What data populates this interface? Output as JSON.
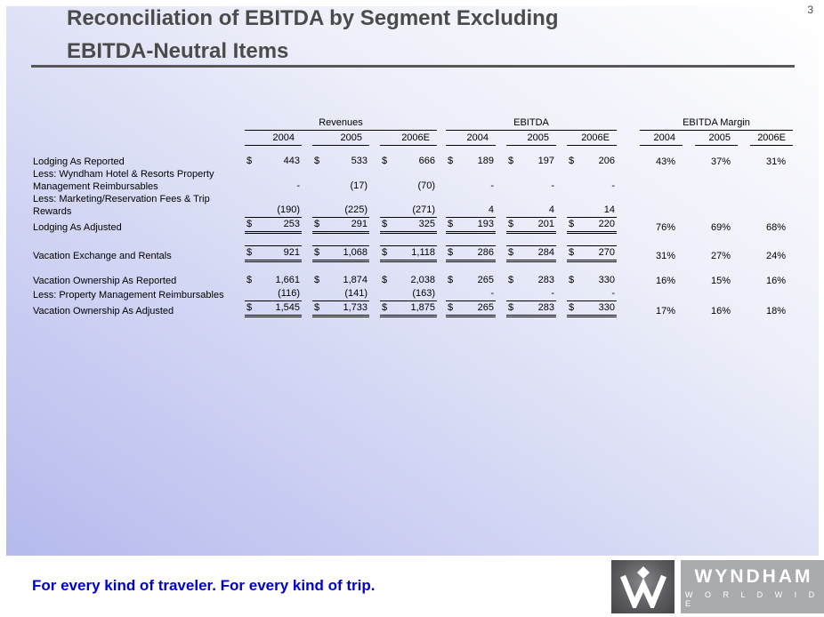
{
  "page": {
    "number": "3"
  },
  "title": {
    "line1": "Reconciliation of EBITDA by Segment Excluding",
    "line2": "EBITDA-Neutral Items"
  },
  "colors": {
    "panel_lavender": "#b5baee",
    "title_gray": "#4b4b4b",
    "tagline_blue": "#0000cc",
    "logo_dark_gray": "#454549",
    "logo_light_gray": "#a8aaad"
  },
  "table": {
    "groups": [
      {
        "label": "Revenues",
        "years": [
          "2004",
          "2005",
          "2006E"
        ]
      },
      {
        "label": "EBITDA",
        "years": [
          "2004",
          "2005",
          "2006E"
        ]
      },
      {
        "label": "EBITDA Margin",
        "years": [
          "2004",
          "2005",
          "2006E"
        ]
      }
    ],
    "rows": [
      {
        "label": "Lodging As Reported",
        "revenues": [
          {
            "d": "$",
            "v": "443"
          },
          {
            "d": "$",
            "v": "533"
          },
          {
            "d": "$",
            "v": "666"
          }
        ],
        "ebitda": [
          {
            "d": "$",
            "v": "189"
          },
          {
            "d": "$",
            "v": "197"
          },
          {
            "d": "$",
            "v": "206"
          }
        ],
        "margin": [
          "43%",
          "37%",
          "31%"
        ],
        "border": "none"
      },
      {
        "label": "Less:  Wyndham Hotel & Resorts Property",
        "label2": "Management Reimbursables",
        "revenues": [
          {
            "d": "",
            "v": "-"
          },
          {
            "d": "",
            "v": "(17)"
          },
          {
            "d": "",
            "v": "(70)"
          }
        ],
        "ebitda": [
          {
            "d": "",
            "v": "-"
          },
          {
            "d": "",
            "v": "-"
          },
          {
            "d": "",
            "v": "-"
          }
        ],
        "margin": [
          "",
          "",
          ""
        ],
        "border": "none"
      },
      {
        "label": "Less:  Marketing/Reservation Fees & Trip Rewards",
        "revenues": [
          {
            "d": "",
            "v": "(190)"
          },
          {
            "d": "",
            "v": "(225)"
          },
          {
            "d": "",
            "v": "(271)"
          }
        ],
        "ebitda": [
          {
            "d": "",
            "v": "4"
          },
          {
            "d": "",
            "v": "4"
          },
          {
            "d": "",
            "v": "14"
          }
        ],
        "margin": [
          "",
          "",
          ""
        ],
        "border": "single"
      },
      {
        "label": "Lodging As Adjusted",
        "revenues": [
          {
            "d": "$",
            "v": "253"
          },
          {
            "d": "$",
            "v": "291"
          },
          {
            "d": "$",
            "v": "325"
          }
        ],
        "ebitda": [
          {
            "d": "$",
            "v": "193"
          },
          {
            "d": "$",
            "v": "201"
          },
          {
            "d": "$",
            "v": "220"
          }
        ],
        "margin": [
          "76%",
          "69%",
          "68%"
        ],
        "border": "double"
      },
      {
        "spacer": true
      },
      {
        "label": "Vacation Exchange and Rentals",
        "revenues": [
          {
            "d": "$",
            "v": "921"
          },
          {
            "d": "$",
            "v": "1,068"
          },
          {
            "d": "$",
            "v": "1,118"
          }
        ],
        "ebitda": [
          {
            "d": "$",
            "v": "286"
          },
          {
            "d": "$",
            "v": "284"
          },
          {
            "d": "$",
            "v": "270"
          }
        ],
        "margin": [
          "31%",
          "27%",
          "24%"
        ],
        "border": "top-double"
      },
      {
        "spacer": true
      },
      {
        "label": "Vacation Ownership As Reported",
        "revenues": [
          {
            "d": "$",
            "v": "1,661"
          },
          {
            "d": "$",
            "v": "1,874"
          },
          {
            "d": "$",
            "v": "2,038"
          }
        ],
        "ebitda": [
          {
            "d": "$",
            "v": "265"
          },
          {
            "d": "$",
            "v": "283"
          },
          {
            "d": "$",
            "v": "330"
          }
        ],
        "margin": [
          "16%",
          "15%",
          "16%"
        ],
        "border": "none"
      },
      {
        "label": "Less:  Property Management Reimbursables",
        "revenues": [
          {
            "d": "",
            "v": "(116)"
          },
          {
            "d": "",
            "v": "(141)"
          },
          {
            "d": "",
            "v": "(163)"
          }
        ],
        "ebitda": [
          {
            "d": "",
            "v": "-"
          },
          {
            "d": "",
            "v": "-"
          },
          {
            "d": "",
            "v": "-"
          }
        ],
        "margin": [
          "",
          "",
          ""
        ],
        "border": "single"
      },
      {
        "label": "Vacation Ownership As Adjusted",
        "revenues": [
          {
            "d": "$",
            "v": "1,545"
          },
          {
            "d": "$",
            "v": "1,733"
          },
          {
            "d": "$",
            "v": "1,875"
          }
        ],
        "ebitda": [
          {
            "d": "$",
            "v": "265"
          },
          {
            "d": "$",
            "v": "283"
          },
          {
            "d": "$",
            "v": "330"
          }
        ],
        "margin": [
          "17%",
          "16%",
          "18%"
        ],
        "border": "double"
      }
    ]
  },
  "footer": {
    "tagline": "For every kind of traveler. For every kind of trip."
  },
  "logo": {
    "name": "WYNDHAM",
    "subname": "W O R L D W I D E"
  }
}
